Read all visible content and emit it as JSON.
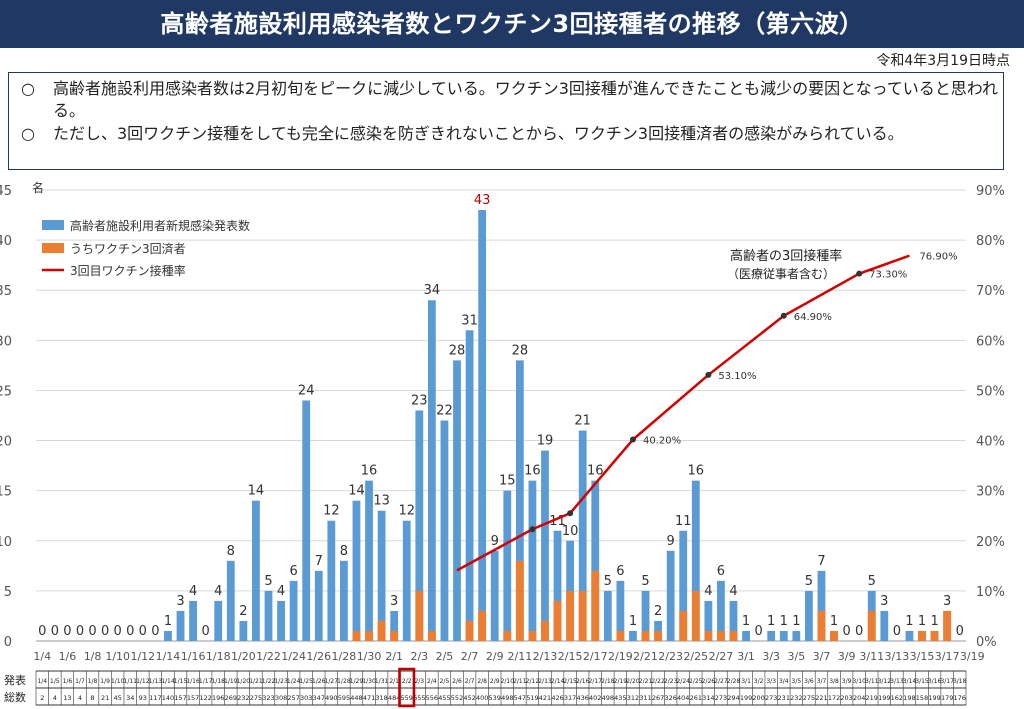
{
  "header": {
    "title": "高齢者施設利用感染者数とワクチン3回接種者の推移（第六波）",
    "date_note": "令和4年3月19日時点"
  },
  "notes": [
    {
      "mark": "○",
      "text": "高齢者施設利用感染者数は2月初旬をピークに減少している。ワクチン3回接種が進んできたことも減少の要因となっていると思われる。"
    },
    {
      "mark": "○",
      "text": "ただし、3回ワクチン接種をしても完全に感染を防ぎきれないことから、ワクチン3回接種済者の感染がみられている。"
    }
  ],
  "chart_data": {
    "type": "bar",
    "y_unit": "名",
    "ylim": [
      0,
      45
    ],
    "y_ticks": [
      "0",
      "5",
      "10",
      "15",
      "20",
      "25",
      "30",
      "35",
      "40",
      "45"
    ],
    "y2lim": [
      0,
      0.9
    ],
    "y2_ticks": [
      "0%",
      "10%",
      "20%",
      "30%",
      "40%",
      "50%",
      "60%",
      "70%",
      "80%",
      "90%"
    ],
    "x_tick_labels": [
      "1/4",
      "1/6",
      "1/8",
      "1/10",
      "1/12",
      "1/14",
      "1/16",
      "1/18",
      "1/20",
      "1/22",
      "1/24",
      "1/26",
      "1/28",
      "1/30",
      "2/1",
      "2/3",
      "2/5",
      "2/7",
      "2/9",
      "2/11",
      "2/13",
      "2/15",
      "2/17",
      "2/19",
      "2/21",
      "2/23",
      "2/25",
      "2/27",
      "3/1",
      "3/3",
      "3/5",
      "3/7",
      "3/9",
      "3/11",
      "3/13",
      "3/15",
      "3/17",
      "3/19"
    ],
    "legend": [
      "高齢者施設利用者新規感染発表数",
      "うちワクチン3回済者",
      "3回目ワクチン接種率"
    ],
    "series": [
      {
        "name": "高齢者施設利用者新規感染発表数",
        "color": "#5b9bd5",
        "values": [
          0,
          0,
          0,
          0,
          0,
          0,
          0,
          0,
          0,
          0,
          1,
          3,
          4,
          0,
          4,
          8,
          2,
          14,
          5,
          4,
          6,
          24,
          7,
          12,
          8,
          14,
          16,
          13,
          3,
          12,
          23,
          34,
          22,
          28,
          31,
          43,
          9,
          15,
          28,
          16,
          19,
          11,
          10,
          21,
          16,
          5,
          6,
          1,
          5,
          2,
          9,
          11,
          16,
          4,
          6,
          4,
          1,
          0,
          1,
          1,
          1,
          5,
          7,
          1,
          0,
          0,
          5,
          3,
          0,
          1,
          1,
          1,
          3,
          0
        ]
      },
      {
        "name": "うちワクチン3回済者",
        "color": "#ed7d31",
        "values": [
          0,
          0,
          0,
          0,
          0,
          0,
          0,
          0,
          0,
          0,
          0,
          0,
          0,
          0,
          0,
          0,
          0,
          0,
          0,
          0,
          0,
          0,
          0,
          0,
          0,
          1,
          1,
          2,
          1,
          0,
          5,
          1,
          0,
          0,
          2,
          3,
          0,
          1,
          8,
          1,
          2,
          4,
          5,
          5,
          7,
          0,
          1,
          0,
          1,
          1,
          0,
          3,
          5,
          1,
          1,
          1,
          0,
          0,
          0,
          0,
          0,
          0,
          3,
          1,
          0,
          0,
          3,
          0,
          0,
          0,
          1,
          1,
          3,
          0
        ]
      },
      {
        "name": "3回目ワクチン接種率",
        "color": "#d40000",
        "points": [
          [
            33,
            0.141
          ],
          [
            39,
            0.223
          ],
          [
            42,
            0.255
          ],
          [
            47,
            0.402
          ],
          [
            53,
            0.531
          ],
          [
            59,
            0.649
          ],
          [
            65,
            0.733
          ],
          [
            69,
            0.769
          ]
        ]
      }
    ],
    "rate_labels": [
      [
        "40.20%",
        47
      ],
      [
        "53.10%",
        53
      ],
      [
        "64.90%",
        59
      ],
      [
        "73.30%",
        65
      ],
      [
        "76.90%",
        69
      ]
    ],
    "annotation": [
      "高齢者の3回接種率",
      "（医療従事者含む）"
    ],
    "table": {
      "row_labels": [
        "発表",
        "総数"
      ],
      "dates": [
        "1/4",
        "1/5",
        "1/6",
        "1/7",
        "1/8",
        "1/9",
        "1/10",
        "1/11",
        "1/12",
        "1/13",
        "1/14",
        "1/15",
        "1/16",
        "1/17",
        "1/18",
        "1/19",
        "1/20",
        "1/21",
        "1/22",
        "1/23",
        "1/24",
        "1/25",
        "1/26",
        "1/27",
        "1/28",
        "1/29",
        "1/30",
        "1/31",
        "2/1",
        "2/2",
        "2/3",
        "2/4",
        "2/5",
        "2/6",
        "2/7",
        "2/8",
        "2/9",
        "2/10",
        "2/11",
        "2/12",
        "2/13",
        "2/14",
        "2/15",
        "2/16",
        "2/17",
        "2/18",
        "2/19",
        "2/20",
        "2/21",
        "2/22",
        "2/23",
        "2/24",
        "2/25",
        "2/26",
        "2/27",
        "2/28",
        "3/1",
        "3/2",
        "3/3",
        "3/4",
        "3/5",
        "3/6",
        "3/7",
        "3/8",
        "3/9",
        "3/10",
        "3/11",
        "3/12",
        "3/13",
        "3/14",
        "3/15",
        "3/16",
        "3/17",
        "3/18"
      ],
      "totals": [
        "2",
        "4",
        "13",
        "4",
        "8",
        "21",
        "45",
        "34",
        "93",
        "117",
        "140",
        "157",
        "157",
        "122",
        "196",
        "269",
        "232",
        "275",
        "323",
        "308",
        "257",
        "303",
        "347",
        "490",
        "595",
        "448",
        "471",
        "318",
        "484",
        "559",
        "655",
        "556",
        "455",
        "552",
        "452",
        "400",
        "539",
        "498",
        "547",
        "519",
        "421",
        "426",
        "317",
        "436",
        "402",
        "498",
        "435",
        "312",
        "311",
        "267",
        "326",
        "404",
        "261",
        "314",
        "273",
        "294",
        "199",
        "200",
        "273",
        "231",
        "232",
        "275",
        "221",
        "172",
        "203",
        "204",
        "219",
        "199",
        "162",
        "198",
        "158",
        "199",
        "179",
        "176"
      ],
      "highlight_index": 29
    }
  }
}
